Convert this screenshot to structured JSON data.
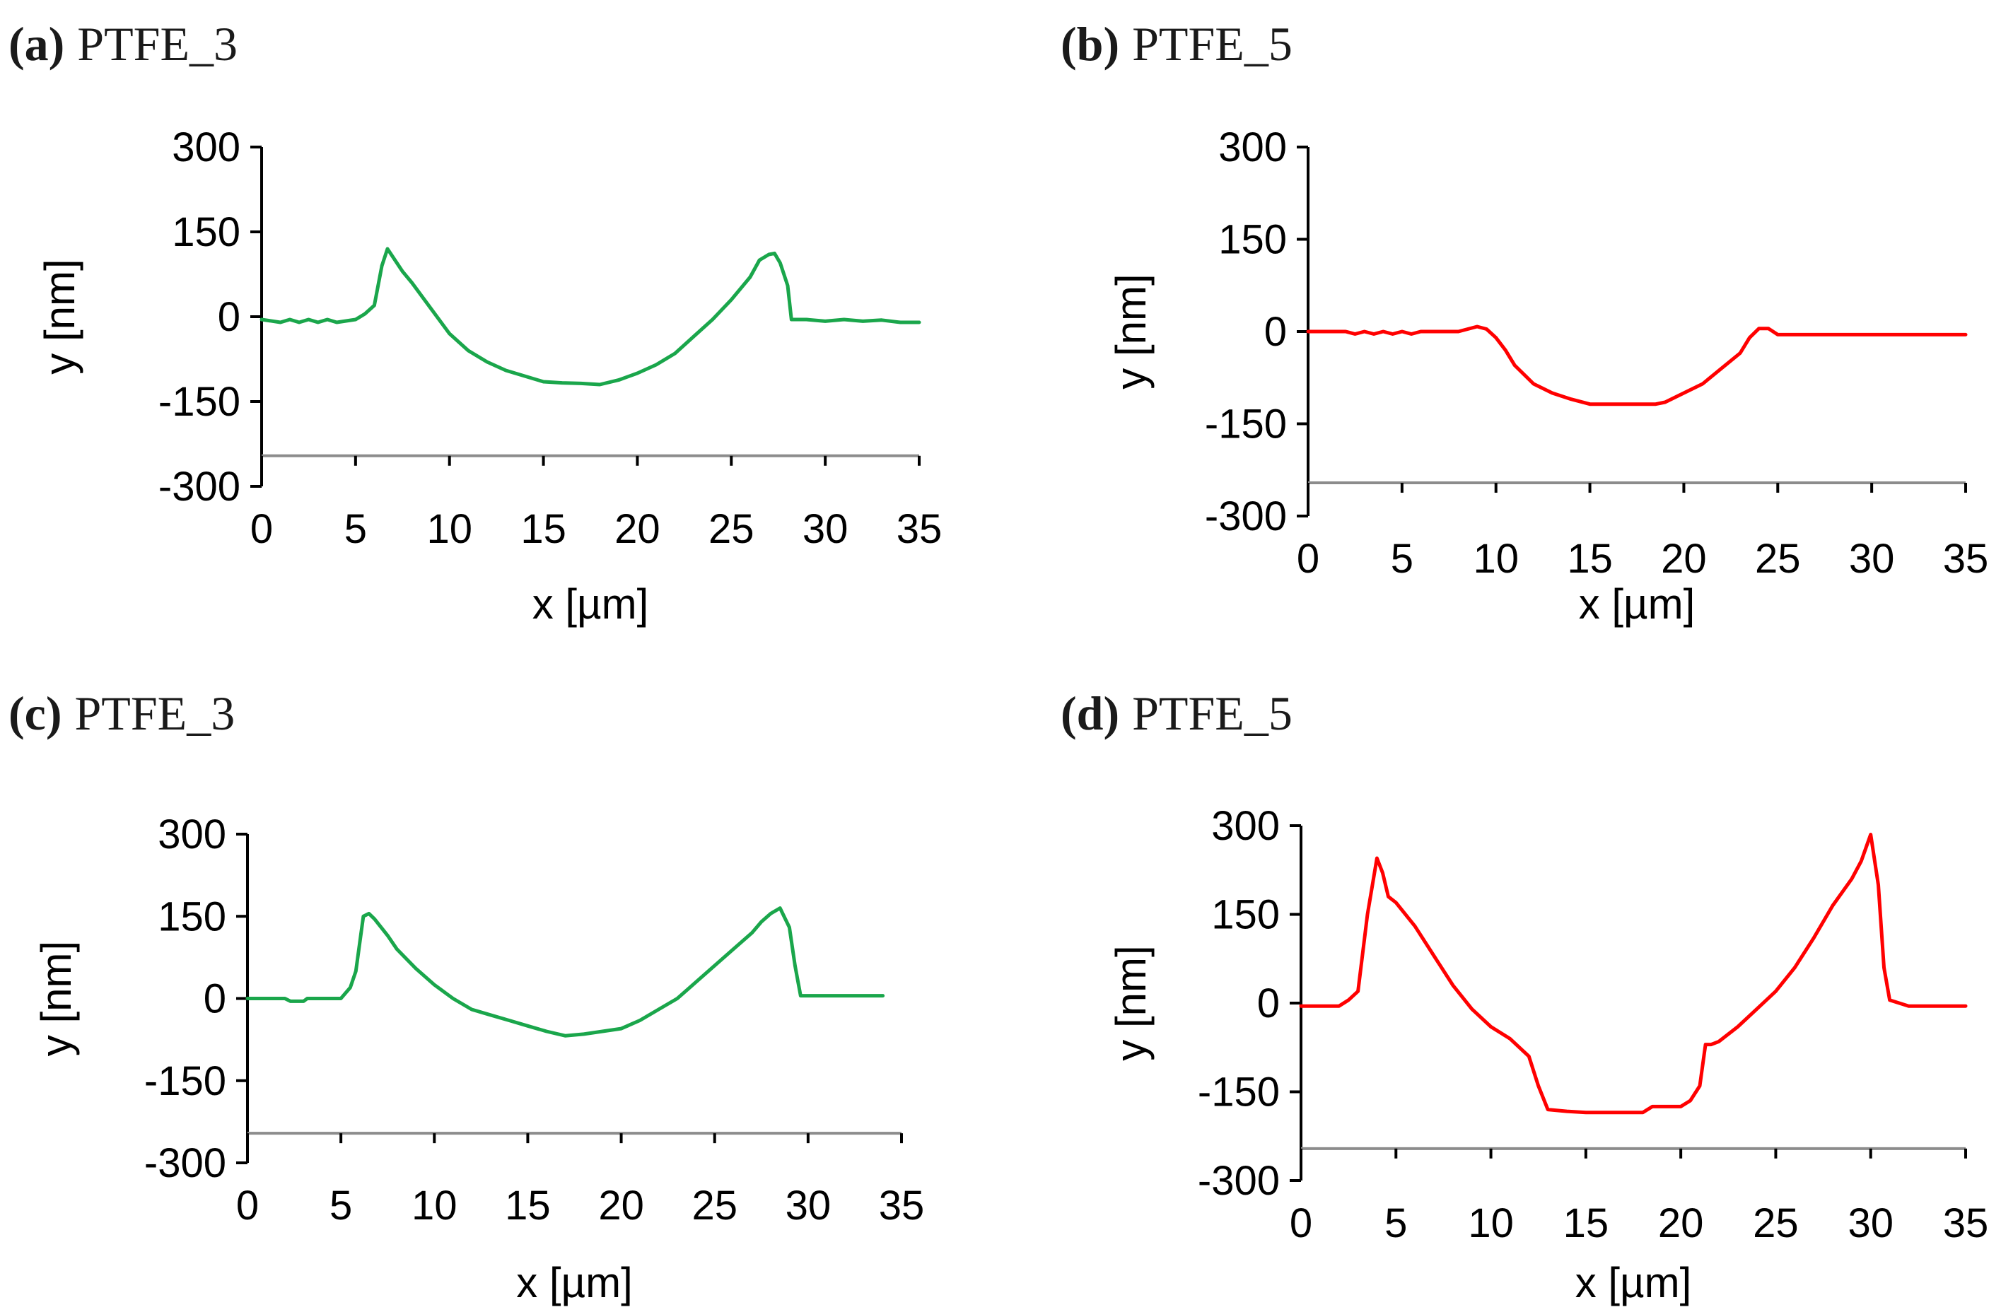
{
  "chart_data": [
    {
      "type": "line",
      "panel": "(a)",
      "title": "PTFE_3",
      "xlabel": "x [µm]",
      "ylabel": "y [nm]",
      "xlim": [
        0,
        35
      ],
      "ylim": [
        -300,
        300
      ],
      "xticks": [
        "0",
        "5",
        "10",
        "15",
        "20",
        "25",
        "30",
        "35"
      ],
      "yticks": [
        "300",
        "150",
        "0",
        "-150",
        "-300"
      ],
      "color": "#1aa64b",
      "series": [
        {
          "x": [
            0,
            1,
            1.5,
            2,
            2.5,
            3,
            3.5,
            4,
            5,
            5.5,
            6,
            6.4,
            6.7,
            7,
            7.5,
            8,
            9,
            10,
            11,
            12,
            13,
            14,
            15,
            16,
            17,
            18,
            19,
            20,
            21,
            22,
            23,
            24,
            25,
            26,
            26.5,
            27,
            27.3,
            27.6,
            28,
            28.2,
            29,
            30,
            31,
            32,
            33,
            34,
            35
          ],
          "y": [
            -5,
            -10,
            -5,
            -10,
            -5,
            -10,
            -5,
            -10,
            -5,
            5,
            20,
            90,
            120,
            105,
            80,
            60,
            15,
            -30,
            -60,
            -80,
            -95,
            -105,
            -115,
            -117,
            -118,
            -120,
            -112,
            -100,
            -85,
            -65,
            -35,
            -5,
            30,
            70,
            100,
            110,
            112,
            95,
            55,
            -5,
            -5,
            -8,
            -5,
            -8,
            -6,
            -10,
            -10
          ]
        }
      ]
    },
    {
      "type": "line",
      "panel": "(b)",
      "title": "PTFE_5",
      "xlabel": "x [µm]",
      "ylabel": "y [nm]",
      "xlim": [
        0,
        35
      ],
      "ylim": [
        -300,
        300
      ],
      "xticks": [
        "0",
        "5",
        "10",
        "15",
        "20",
        "25",
        "30",
        "35"
      ],
      "yticks": [
        "300",
        "150",
        "0",
        "-150",
        "-300"
      ],
      "color": "#ff0000",
      "series": [
        {
          "x": [
            0,
            2,
            2.5,
            3,
            3.5,
            4,
            4.5,
            5,
            5.5,
            6,
            8,
            9,
            9.5,
            10,
            10.5,
            11,
            12,
            13,
            14,
            15,
            16,
            17,
            18,
            18.5,
            19,
            20,
            21,
            22,
            23,
            23.5,
            24,
            24.5,
            25,
            26,
            28,
            30,
            32,
            35
          ],
          "y": [
            0,
            0,
            -4,
            0,
            -4,
            0,
            -4,
            0,
            -4,
            0,
            0,
            8,
            4,
            -10,
            -30,
            -55,
            -85,
            -100,
            -110,
            -118,
            -118,
            -118,
            -118,
            -118,
            -115,
            -100,
            -85,
            -60,
            -35,
            -10,
            5,
            5,
            -5,
            -5,
            -5,
            -5,
            -5,
            -5
          ]
        }
      ]
    },
    {
      "type": "line",
      "panel": "(c)",
      "title": "PTFE_3",
      "xlabel": "x [µm]",
      "ylabel": "y [nm]",
      "xlim": [
        0,
        35
      ],
      "ylim": [
        -300,
        300
      ],
      "xticks": [
        "0",
        "5",
        "10",
        "15",
        "20",
        "25",
        "30",
        "35"
      ],
      "yticks": [
        "300",
        "150",
        "0",
        "-150",
        "-300"
      ],
      "color": "#1aa64b",
      "series": [
        {
          "x": [
            0,
            2,
            2.3,
            3,
            3.2,
            5,
            5.5,
            5.8,
            6.2,
            6.5,
            6.8,
            7.5,
            8,
            9,
            10,
            11,
            12,
            13,
            14,
            15,
            16,
            17,
            18,
            19,
            20,
            21,
            22,
            23,
            24,
            25,
            26,
            27,
            27.5,
            28,
            28.5,
            29,
            29.3,
            29.6,
            30,
            32,
            34
          ],
          "y": [
            0,
            0,
            -5,
            -5,
            0,
            0,
            20,
            50,
            150,
            155,
            145,
            115,
            90,
            55,
            25,
            0,
            -20,
            -30,
            -40,
            -50,
            -60,
            -68,
            -65,
            -60,
            -55,
            -40,
            -20,
            0,
            30,
            60,
            90,
            120,
            140,
            155,
            165,
            130,
            60,
            5,
            5,
            5,
            5
          ]
        }
      ]
    },
    {
      "type": "line",
      "panel": "(d)",
      "title": "PTFE_5",
      "xlabel": "x [µm]",
      "ylabel": "y [nm]",
      "xlim": [
        0,
        35
      ],
      "ylim": [
        -300,
        300
      ],
      "xticks": [
        "0",
        "5",
        "10",
        "15",
        "20",
        "25",
        "30",
        "35"
      ],
      "yticks": [
        "300",
        "150",
        "0",
        "-150",
        "-300"
      ],
      "color": "#ff0000",
      "series": [
        {
          "x": [
            0,
            2,
            2.5,
            3,
            3.5,
            4,
            4.3,
            4.6,
            5,
            6,
            7,
            8,
            9,
            10,
            11,
            12,
            12.5,
            13,
            14,
            15,
            16,
            17,
            18,
            18.5,
            19,
            20,
            20.5,
            21,
            21.3,
            21.6,
            22,
            23,
            24,
            25,
            26,
            27,
            28,
            29,
            29.5,
            30,
            30.4,
            30.7,
            31,
            32,
            35
          ],
          "y": [
            -5,
            -5,
            5,
            20,
            150,
            245,
            220,
            180,
            170,
            130,
            80,
            30,
            -10,
            -40,
            -60,
            -90,
            -140,
            -180,
            -183,
            -185,
            -185,
            -185,
            -185,
            -175,
            -175,
            -175,
            -165,
            -140,
            -70,
            -70,
            -65,
            -40,
            -10,
            20,
            60,
            110,
            165,
            210,
            240,
            285,
            200,
            60,
            5,
            -5,
            -5
          ]
        }
      ]
    }
  ]
}
